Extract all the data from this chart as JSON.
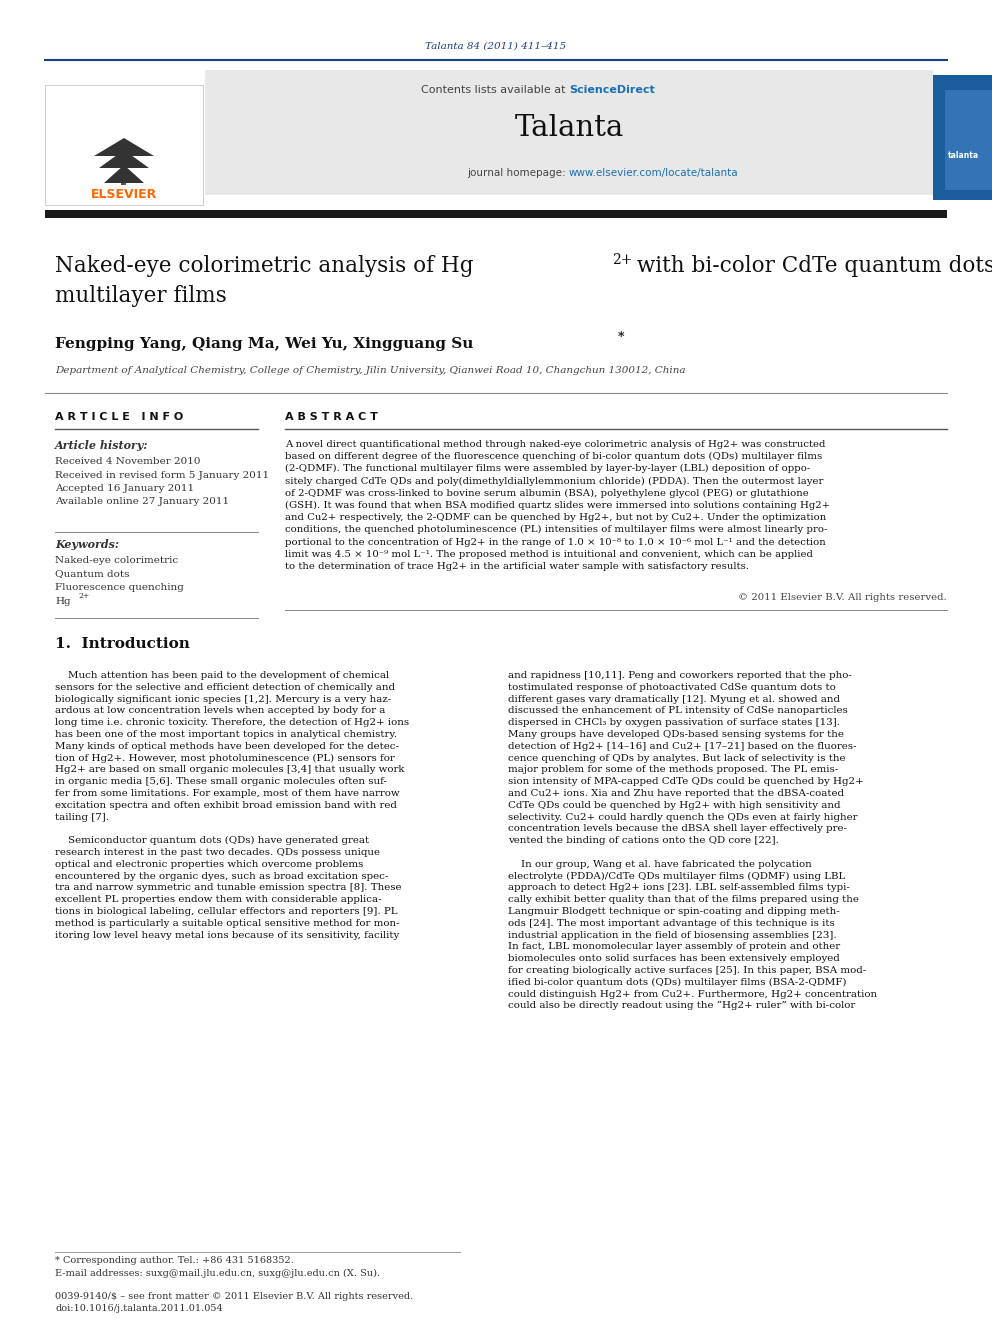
{
  "page_bg": "#ffffff",
  "top_citation": "Talanta 84 (2011) 411–415",
  "top_citation_color": "#1a3e8c",
  "header_bg": "#e8e8e8",
  "header_sciencedirect_color": "#1a6eb5",
  "journal_name": "Talanta",
  "journal_url_color": "#1a6eb5",
  "dark_bar_color": "#1a1a1a",
  "authors": "Fengping Yang, Qiang Ma, Wei Yu, Xingguang Su",
  "affiliation": "Department of Analytical Chemistry, College of Chemistry, Jilin University, Qianwei Road 10, Changchun 130012, China",
  "section_article_info": "A R T I C L E   I N F O",
  "section_abstract": "A B S T R A C T",
  "article_history_label": "Article history:",
  "received1": "Received 4 November 2010",
  "received2": "Received in revised form 5 January 2011",
  "accepted": "Accepted 16 January 2011",
  "available": "Available online 27 January 2011",
  "keywords_label": "Keywords:",
  "keywords": [
    "Naked-eye colorimetric",
    "Quantum dots",
    "Fluorescence quenching",
    "Hg2+"
  ],
  "copyright": "© 2011 Elsevier B.V. All rights reserved.",
  "intro_heading": "1.  Introduction",
  "footer_note": "* Corresponding author. Tel.: +86 431 5168352.",
  "footer_email": "E-mail addresses: suxg@mail.jlu.edu.cn, suxg@jlu.edu.cn (X. Su).",
  "footer_issn": "0039-9140/$ – see front matter © 2011 Elsevier B.V. All rights reserved.",
  "footer_doi": "doi:10.1016/j.talanta.2011.01.054",
  "elsevier_color": "#ff6600",
  "abstract_lines": [
    "A novel direct quantificational method through naked-eye colorimetric analysis of Hg2+ was constructed",
    "based on different degree of the fluorescence quenching of bi-color quantum dots (QDs) multilayer films",
    "(2-QDMF). The functional multilayer films were assembled by layer-by-layer (LBL) deposition of oppo-",
    "sitely charged CdTe QDs and poly(dimethyldiallylemmonium chloride) (PDDA). Then the outermost layer",
    "of 2-QDMF was cross-linked to bovine serum albumin (BSA), polyethylene glycol (PEG) or glutathione",
    "(GSH). It was found that when BSA modified quartz slides were immersed into solutions containing Hg2+",
    "and Cu2+ respectively, the 2-QDMF can be quenched by Hg2+, but not by Cu2+. Under the optimization",
    "conditions, the quenched photoluminescence (PL) intensities of multilayer films were almost linearly pro-",
    "portional to the concentration of Hg2+ in the range of 1.0 × 10⁻⁸ to 1.0 × 10⁻⁶ mol L⁻¹ and the detection",
    "limit was 4.5 × 10⁻⁹ mol L⁻¹. The proposed method is intuitional and convenient, which can be applied",
    "to the determination of trace Hg2+ in the artificial water sample with satisfactory results."
  ],
  "intro_col1_lines": [
    "    Much attention has been paid to the development of chemical",
    "sensors for the selective and efficient detection of chemically and",
    "biologically significant ionic species [1,2]. Mercury is a very haz-",
    "ardous at low concentration levels when accepted by body for a",
    "long time i.e. chronic toxicity. Therefore, the detection of Hg2+ ions",
    "has been one of the most important topics in analytical chemistry.",
    "Many kinds of optical methods have been developed for the detec-",
    "tion of Hg2+. However, most photoluminescence (PL) sensors for",
    "Hg2+ are based on small organic molecules [3,4] that usually work",
    "in organic media [5,6]. These small organic molecules often suf-",
    "fer from some limitations. For example, most of them have narrow",
    "excitation spectra and often exhibit broad emission band with red",
    "tailing [7].",
    "",
    "    Semiconductor quantum dots (QDs) have generated great",
    "research interest in the past two decades. QDs possess unique",
    "optical and electronic properties which overcome problems",
    "encountered by the organic dyes, such as broad excitation spec-",
    "tra and narrow symmetric and tunable emission spectra [8]. These",
    "excellent PL properties endow them with considerable applica-",
    "tions in biological labeling, cellular effectors and reporters [9]. PL",
    "method is particularly a suitable optical sensitive method for mon-",
    "itoring low level heavy metal ions because of its sensitivity, facility"
  ],
  "intro_col2_lines": [
    "and rapidness [10,11]. Peng and coworkers reported that the pho-",
    "tostimulated response of photoactivated CdSe quantum dots to",
    "different gases vary dramatically [12]. Myung et al. showed and",
    "discussed the enhancement of PL intensity of CdSe nanoparticles",
    "dispersed in CHCl₃ by oxygen passivation of surface states [13].",
    "Many groups have developed QDs-based sensing systems for the",
    "detection of Hg2+ [14–16] and Cu2+ [17–21] based on the fluores-",
    "cence quenching of QDs by analytes. But lack of selectivity is the",
    "major problem for some of the methods proposed. The PL emis-",
    "sion intensity of MPA-capped CdTe QDs could be quenched by Hg2+",
    "and Cu2+ ions. Xia and Zhu have reported that the dBSA-coated",
    "CdTe QDs could be quenched by Hg2+ with high sensitivity and",
    "selectivity. Cu2+ could hardly quench the QDs even at fairly higher",
    "concentration levels because the dBSA shell layer effectively pre-",
    "vented the binding of cations onto the QD core [22].",
    "",
    "    In our group, Wang et al. have fabricated the polycation",
    "electrolyte (PDDA)/CdTe QDs multilayer films (QDMF) using LBL",
    "approach to detect Hg2+ ions [23]. LBL self-assembled films typi-",
    "cally exhibit better quality than that of the films prepared using the",
    "Langmuir Blodgett technique or spin-coating and dipping meth-",
    "ods [24]. The most important advantage of this technique is its",
    "industrial application in the field of biosensing assemblies [23].",
    "In fact, LBL monomolecular layer assembly of protein and other",
    "biomolecules onto solid surfaces has been extensively employed",
    "for creating biologically active surfaces [25]. In this paper, BSA mod-",
    "ified bi-color quantum dots (QDs) multilayer films (BSA-2-QDMF)",
    "could distinguish Hg2+ from Cu2+. Furthermore, Hg2+ concentration",
    "could also be directly readout using the “Hg2+ ruler” with bi-color"
  ]
}
